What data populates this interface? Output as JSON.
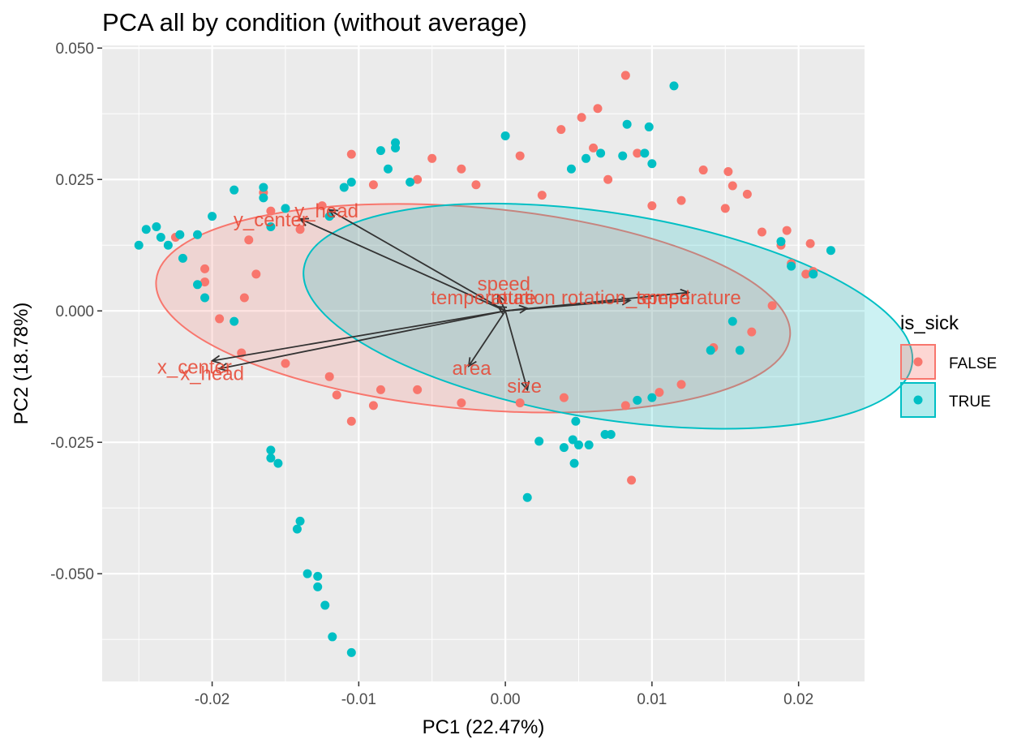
{
  "chart_data": {
    "type": "scatter",
    "title": "PCA all by condition (without average)",
    "xlabel": "PC1 (22.47%)",
    "ylabel": "PC2 (18.78%)",
    "xlim": [
      -0.0275,
      0.0245
    ],
    "ylim": [
      -0.0705,
      0.0505
    ],
    "xticks": [
      -0.02,
      -0.01,
      0.0,
      0.01,
      0.02
    ],
    "xtick_labels": [
      "-0.02",
      "-0.01",
      "0.00",
      "0.01",
      "0.02"
    ],
    "yticks": [
      -0.05,
      -0.025,
      0.0,
      0.025,
      0.05
    ],
    "ytick_labels": [
      "-0.050",
      "-0.025",
      "0.000",
      "0.025",
      "0.050"
    ],
    "grid": true,
    "legend": {
      "title": "is_sick",
      "placement": "right",
      "entries": [
        {
          "label": "FALSE",
          "color": "#F8766D"
        },
        {
          "label": "TRUE",
          "color": "#00BFC4"
        }
      ]
    },
    "series": [
      {
        "name": "FALSE",
        "color": "#F8766D",
        "points": [
          [
            0.0082,
            0.0448
          ],
          [
            0.0063,
            0.0385
          ],
          [
            0.0052,
            0.0368
          ],
          [
            0.0038,
            0.0345
          ],
          [
            -0.0105,
            0.0298
          ],
          [
            0.0135,
            0.0268
          ],
          [
            0.0152,
            0.0265
          ],
          [
            0.0155,
            0.0238
          ],
          [
            0.0165,
            0.0222
          ],
          [
            0.0192,
            0.0153
          ],
          [
            0.0208,
            0.0128
          ],
          [
            0.0188,
            0.0125
          ],
          [
            0.0195,
            0.009
          ],
          [
            0.0205,
            0.007
          ],
          [
            0.021,
            0.0075
          ],
          [
            0.0182,
            0.001
          ],
          [
            0.0168,
            -0.004
          ],
          [
            0.0142,
            -0.007
          ],
          [
            0.0105,
            -0.0155
          ],
          [
            0.0082,
            -0.018
          ],
          [
            0.0086,
            -0.0322
          ],
          [
            -0.0115,
            -0.016
          ],
          [
            -0.0105,
            -0.021
          ],
          [
            -0.0085,
            -0.015
          ],
          [
            -0.0125,
            0.02
          ],
          [
            -0.0165,
            0.0225
          ],
          [
            -0.0175,
            0.0135
          ],
          [
            -0.0205,
            0.008
          ],
          [
            -0.0205,
            0.0055
          ],
          [
            -0.0195,
            -0.0015
          ],
          [
            -0.0178,
            0.0025
          ],
          [
            -0.0225,
            0.014
          ],
          [
            -0.016,
            0.019
          ],
          [
            -0.014,
            0.0155
          ],
          [
            -0.009,
            0.024
          ],
          [
            -0.006,
            0.025
          ],
          [
            -0.003,
            0.027
          ],
          [
            0.001,
            0.0295
          ],
          [
            0.006,
            0.031
          ],
          [
            0.009,
            0.03
          ],
          [
            0.012,
            0.021
          ],
          [
            0.015,
            0.0195
          ],
          [
            0.0175,
            0.015
          ],
          [
            0.01,
            0.02
          ],
          [
            0.007,
            0.025
          ],
          [
            -0.005,
            0.029
          ],
          [
            -0.002,
            0.024
          ],
          [
            0.0025,
            0.022
          ],
          [
            -0.015,
            -0.01
          ],
          [
            -0.012,
            -0.0125
          ],
          [
            -0.009,
            -0.018
          ],
          [
            -0.006,
            -0.015
          ],
          [
            -0.003,
            -0.0175
          ],
          [
            0.001,
            -0.0175
          ],
          [
            0.004,
            -0.0165
          ],
          [
            0.012,
            -0.014
          ],
          [
            -0.018,
            -0.008
          ],
          [
            -0.017,
            0.007
          ]
        ]
      },
      {
        "name": "TRUE",
        "color": "#00BFC4",
        "points": [
          [
            0.0115,
            0.0428
          ],
          [
            0.0083,
            0.0355
          ],
          [
            0.0,
            0.0333
          ],
          [
            -0.0075,
            0.032
          ],
          [
            -0.0085,
            0.0305
          ],
          [
            -0.0245,
            0.0155
          ],
          [
            -0.0238,
            0.016
          ],
          [
            -0.0235,
            0.014
          ],
          [
            -0.023,
            0.0125
          ],
          [
            -0.025,
            0.0125
          ],
          [
            -0.022,
            0.01
          ],
          [
            -0.021,
            0.005
          ],
          [
            -0.02,
            0.018
          ],
          [
            -0.0185,
            0.023
          ],
          [
            -0.0165,
            0.0235
          ],
          [
            -0.0165,
            0.0215
          ],
          [
            -0.021,
            0.0145
          ],
          [
            -0.0222,
            0.0145
          ],
          [
            -0.0205,
            0.0025
          ],
          [
            -0.0185,
            -0.002
          ],
          [
            0.0188,
            0.0132
          ],
          [
            0.0195,
            0.0085
          ],
          [
            0.021,
            0.007
          ],
          [
            0.0222,
            0.0115
          ],
          [
            0.0155,
            -0.002
          ],
          [
            0.016,
            -0.0075
          ],
          [
            0.014,
            -0.0075
          ],
          [
            0.009,
            -0.017
          ],
          [
            0.01,
            -0.0165
          ],
          [
            0.0048,
            -0.021
          ],
          [
            0.0046,
            -0.0245
          ],
          [
            0.0057,
            -0.0255
          ],
          [
            0.005,
            -0.0255
          ],
          [
            0.0068,
            -0.0235
          ],
          [
            0.0072,
            -0.0235
          ],
          [
            0.004,
            -0.026
          ],
          [
            0.0047,
            -0.029
          ],
          [
            0.0023,
            -0.0248
          ],
          [
            0.0015,
            -0.0355
          ],
          [
            -0.016,
            -0.0265
          ],
          [
            -0.016,
            -0.028
          ],
          [
            -0.0155,
            -0.029
          ],
          [
            -0.014,
            -0.04
          ],
          [
            -0.0142,
            -0.0415
          ],
          [
            -0.0135,
            -0.05
          ],
          [
            -0.0128,
            -0.0505
          ],
          [
            -0.0128,
            -0.0525
          ],
          [
            -0.0123,
            -0.056
          ],
          [
            -0.0118,
            -0.062
          ],
          [
            -0.0105,
            -0.065
          ],
          [
            -0.011,
            0.0235
          ],
          [
            -0.0105,
            0.0245
          ],
          [
            -0.0075,
            0.031
          ],
          [
            -0.008,
            0.027
          ],
          [
            -0.0065,
            0.0245
          ],
          [
            0.0045,
            0.027
          ],
          [
            0.0065,
            0.03
          ],
          [
            0.0095,
            0.03
          ],
          [
            0.01,
            0.028
          ],
          [
            0.0098,
            0.035
          ],
          [
            0.008,
            0.0295
          ],
          [
            0.0055,
            0.029
          ],
          [
            -0.016,
            0.016
          ],
          [
            -0.015,
            0.0195
          ],
          [
            -0.012,
            0.018
          ]
        ]
      }
    ],
    "ellipses": [
      {
        "group": "FALSE",
        "color": "#F8766D",
        "cx": -0.0022,
        "cy": 0.0005,
        "rx": 0.0217,
        "ry": 0.0192,
        "tilt_deg": -5
      },
      {
        "group": "TRUE",
        "color": "#00BFC4",
        "cx": 0.007,
        "cy": -0.001,
        "rx": 0.021,
        "ry": 0.0196,
        "tilt_deg": -9
      }
    ],
    "loadings": [
      {
        "label": "y_center",
        "x": -0.014,
        "y": 0.0175,
        "lx": -0.016,
        "ly": 0.0173
      },
      {
        "label": "y_head",
        "x": -0.012,
        "y": 0.0192,
        "lx": -0.0122,
        "ly": 0.019
      },
      {
        "label": "x_center",
        "x": -0.02,
        "y": -0.0095,
        "lx": -0.0212,
        "ly": -0.0107
      },
      {
        "label": "x_head",
        "x": -0.0195,
        "y": -0.011,
        "lx": -0.02,
        "ly": -0.0119
      },
      {
        "label": "speed",
        "x": -0.0005,
        "y": 0.003,
        "lx": -0.0001,
        "ly": 0.0051
      },
      {
        "label": "temperature",
        "x": -0.0005,
        "y": 0.0008,
        "lx": -0.0015,
        "ly": 0.0025
      },
      {
        "label": "rotation",
        "x": 0.0015,
        "y": 0.0005,
        "lx": 0.0012,
        "ly": 0.0025
      },
      {
        "label": "rotation_speed",
        "x": 0.0085,
        "y": 0.002,
        "lx": 0.0082,
        "ly": 0.0025
      },
      {
        "label": "temperature",
        "x": 0.0125,
        "y": 0.0035,
        "lx": 0.0125,
        "ly": 0.0025
      },
      {
        "label": "area",
        "x": -0.0025,
        "y": -0.0105,
        "lx": -0.0023,
        "ly": -0.0109
      },
      {
        "label": "size",
        "x": 0.0015,
        "y": -0.015,
        "lx": 0.0013,
        "ly": -0.0143
      }
    ]
  }
}
